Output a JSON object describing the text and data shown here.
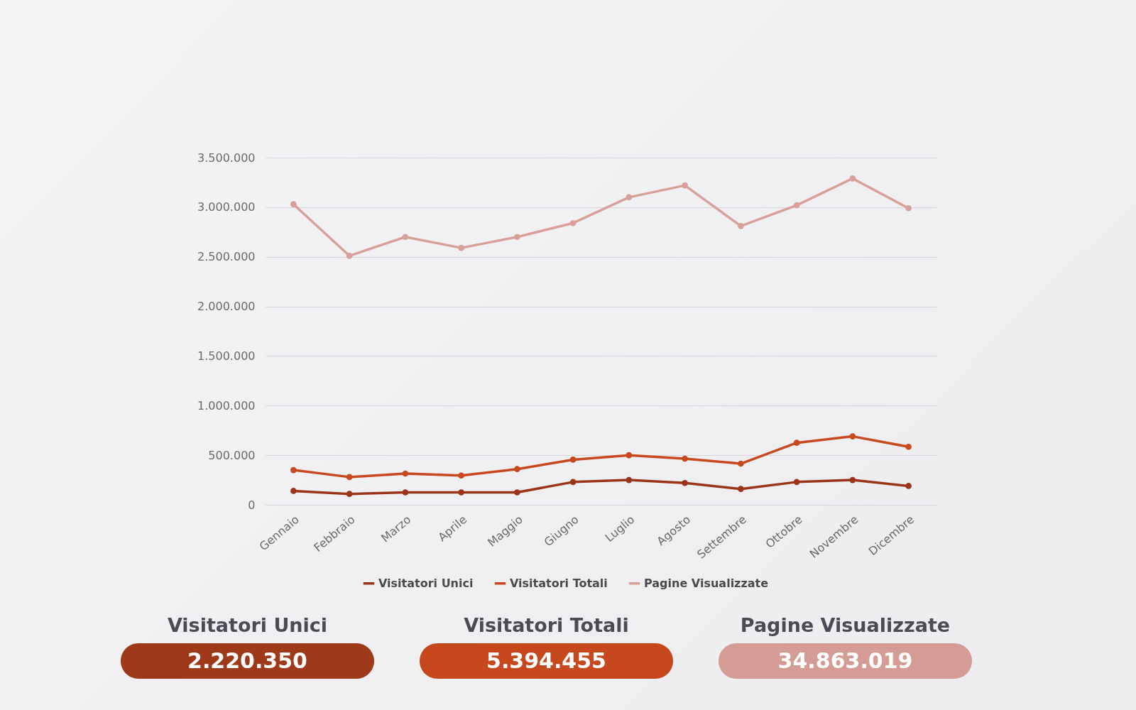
{
  "chart_data": [
    {
      "type": "line",
      "categories": [
        "Gennaio",
        "Febbraio",
        "Marzo",
        "Aprile",
        "Maggio",
        "Giugno",
        "Luglio",
        "Agosto",
        "Settembre",
        "Ottobre",
        "Novembre",
        "Dicembre"
      ],
      "series": [
        {
          "name": "Visitatori Unici",
          "color": "#9c3518",
          "values": [
            140000,
            110000,
            125000,
            125000,
            125000,
            230000,
            250000,
            220000,
            160000,
            230000,
            250000,
            190000
          ]
        },
        {
          "name": "Visitatori Totali",
          "color": "#c8491e",
          "values": [
            350000,
            280000,
            315000,
            295000,
            360000,
            455000,
            500000,
            465000,
            415000,
            625000,
            690000,
            585000
          ]
        },
        {
          "name": "Pagine Visualizzate",
          "color": "#d8a09a",
          "values": [
            3030000,
            2510000,
            2700000,
            2590000,
            2700000,
            2840000,
            3100000,
            3220000,
            2810000,
            3020000,
            3290000,
            2990000
          ]
        }
      ],
      "ylim": [
        0,
        3500000
      ],
      "yticks": [
        0,
        {
          "value": 500000,
          "label": "500.000"
        },
        {
          "value": 1000000,
          "label": "1.000.000"
        },
        {
          "value": 1500000,
          "label": "1.500.000"
        },
        {
          "value": 2000000,
          "label": "2.000.000"
        },
        {
          "value": 2500000,
          "label": "2.500.000"
        },
        {
          "value": 3000000,
          "label": "3.000.000"
        },
        {
          "value": 3500000,
          "label": "3.500.000"
        }
      ],
      "grid": "y",
      "legend": "bottom",
      "marker": "circle"
    },
    {
      "type": "other",
      "categories": [
        "Visitatori Unici",
        "Visitatori Totali",
        "Pagine Visualizzate"
      ],
      "value_labels": [
        "2.220.350",
        "5.394.455",
        "34.863.019"
      ],
      "colors": [
        "#9e3a1a",
        "#c8481e",
        "#d59b95"
      ]
    }
  ]
}
